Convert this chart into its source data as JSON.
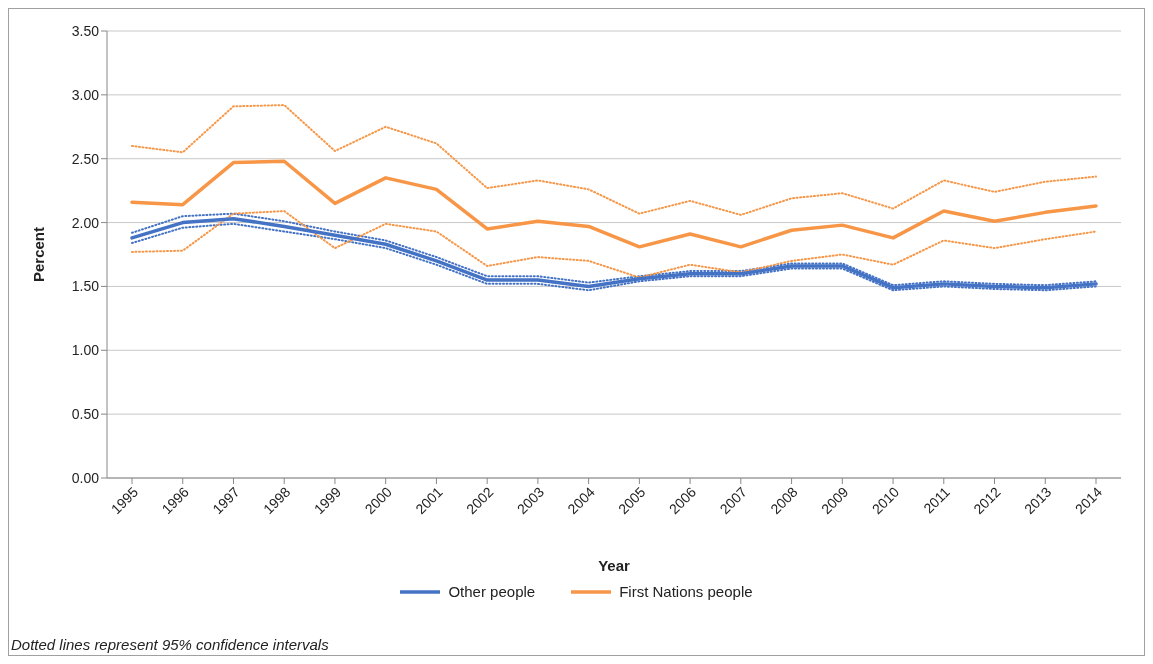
{
  "chart_data": {
    "type": "line",
    "xlabel": "Year",
    "ylabel": "Percent",
    "categories": [
      "1995",
      "1996",
      "1997",
      "1998",
      "1999",
      "2000",
      "2001",
      "2002",
      "2003",
      "2004",
      "2005",
      "2006",
      "2007",
      "2008",
      "2009",
      "2010",
      "2011",
      "2012",
      "2013",
      "2014"
    ],
    "series": [
      {
        "color": "#4472c4",
        "line_style": "dotted",
        "values": [
          1.84,
          1.96,
          1.99,
          1.93,
          1.87,
          1.8,
          1.67,
          1.52,
          1.52,
          1.47,
          1.54,
          1.58,
          1.58,
          1.64,
          1.64,
          1.47,
          1.5,
          1.48,
          1.47,
          1.5
        ]
      },
      {
        "color": "#4472c4",
        "line_style": "dotted",
        "values": [
          1.92,
          2.05,
          2.07,
          2.01,
          1.93,
          1.86,
          1.73,
          1.58,
          1.58,
          1.53,
          1.58,
          1.62,
          1.62,
          1.68,
          1.68,
          1.51,
          1.54,
          1.52,
          1.51,
          1.54
        ]
      },
      {
        "color": "#f79646",
        "line_style": "dotted",
        "values": [
          1.77,
          1.78,
          2.07,
          2.09,
          1.8,
          1.99,
          1.93,
          1.66,
          1.73,
          1.7,
          1.57,
          1.67,
          1.61,
          1.7,
          1.75,
          1.67,
          1.86,
          1.8,
          1.87,
          1.93
        ]
      },
      {
        "color": "#f79646",
        "line_style": "dotted",
        "values": [
          2.6,
          2.55,
          2.91,
          2.92,
          2.56,
          2.75,
          2.62,
          2.27,
          2.33,
          2.26,
          2.07,
          2.17,
          2.06,
          2.19,
          2.23,
          2.11,
          2.33,
          2.24,
          2.32,
          2.36
        ]
      },
      {
        "name": "Other people",
        "color": "#4472c4",
        "values": [
          1.88,
          2.0,
          2.03,
          1.97,
          1.9,
          1.83,
          1.7,
          1.55,
          1.55,
          1.5,
          1.56,
          1.6,
          1.6,
          1.66,
          1.66,
          1.49,
          1.52,
          1.5,
          1.49,
          1.52
        ]
      },
      {
        "name": "First Nations people",
        "color": "#f79646",
        "values": [
          2.16,
          2.14,
          2.47,
          2.48,
          2.15,
          2.35,
          2.26,
          1.95,
          2.01,
          1.97,
          1.81,
          1.91,
          1.81,
          1.94,
          1.98,
          1.88,
          2.09,
          2.01,
          2.08,
          2.13
        ]
      }
    ],
    "ylim": [
      0,
      3.5
    ],
    "yticks": [
      {
        "value": 0,
        "label": "0.00"
      },
      {
        "value": 0.5,
        "label": "0.50"
      },
      {
        "value": 1,
        "label": "1.00"
      },
      {
        "value": 1.5,
        "label": "1.50"
      },
      {
        "value": 2,
        "label": "2.00"
      },
      {
        "value": 2.5,
        "label": "2.50"
      },
      {
        "value": 3,
        "label": "3.00"
      },
      {
        "value": 3.5,
        "label": "3.50"
      }
    ],
    "grid": "y",
    "legend": "bottom",
    "marker": "none",
    "line_style": "solid",
    "annotations": [
      "Dotted lines represent 95% confidence intervals"
    ]
  }
}
